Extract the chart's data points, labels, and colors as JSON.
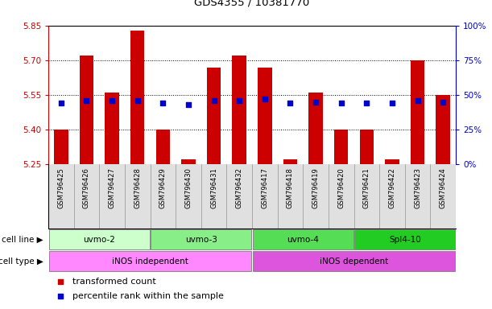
{
  "title": "GDS4355 / 10381770",
  "samples": [
    "GSM796425",
    "GSM796426",
    "GSM796427",
    "GSM796428",
    "GSM796429",
    "GSM796430",
    "GSM796431",
    "GSM796432",
    "GSM796417",
    "GSM796418",
    "GSM796419",
    "GSM796420",
    "GSM796421",
    "GSM796422",
    "GSM796423",
    "GSM796424"
  ],
  "bar_values": [
    5.4,
    5.72,
    5.56,
    5.83,
    5.4,
    5.27,
    5.67,
    5.72,
    5.67,
    5.27,
    5.56,
    5.4,
    5.4,
    5.27,
    5.7,
    5.55
  ],
  "dot_percentiles": [
    44,
    46,
    46,
    46,
    44,
    43,
    46,
    46,
    47,
    44,
    45,
    44,
    44,
    44,
    46,
    45
  ],
  "ymin": 5.25,
  "ymax": 5.85,
  "y2min": 0,
  "y2max": 100,
  "yticks": [
    5.25,
    5.4,
    5.55,
    5.7,
    5.85
  ],
  "y2ticks": [
    0,
    25,
    50,
    75,
    100
  ],
  "bar_color": "#CC0000",
  "dot_color": "#0000CC",
  "bar_bottom": 5.25,
  "cell_lines": [
    {
      "label": "uvmo-2",
      "start": 0,
      "end": 4,
      "color": "#ccffcc"
    },
    {
      "label": "uvmo-3",
      "start": 4,
      "end": 8,
      "color": "#88ee88"
    },
    {
      "label": "uvmo-4",
      "start": 8,
      "end": 12,
      "color": "#55dd55"
    },
    {
      "label": "Spl4-10",
      "start": 12,
      "end": 16,
      "color": "#22cc22"
    }
  ],
  "cell_types": [
    {
      "label": "iNOS independent",
      "start": 0,
      "end": 8,
      "color": "#ff88ff"
    },
    {
      "label": "iNOS dependent",
      "start": 8,
      "end": 16,
      "color": "#dd55dd"
    }
  ],
  "legend_bar_label": "transformed count",
  "legend_dot_label": "percentile rank within the sample",
  "grid_yticks": [
    5.4,
    5.55,
    5.7
  ],
  "axis_color_left": "#CC0000",
  "axis_color_right": "#0000CC"
}
